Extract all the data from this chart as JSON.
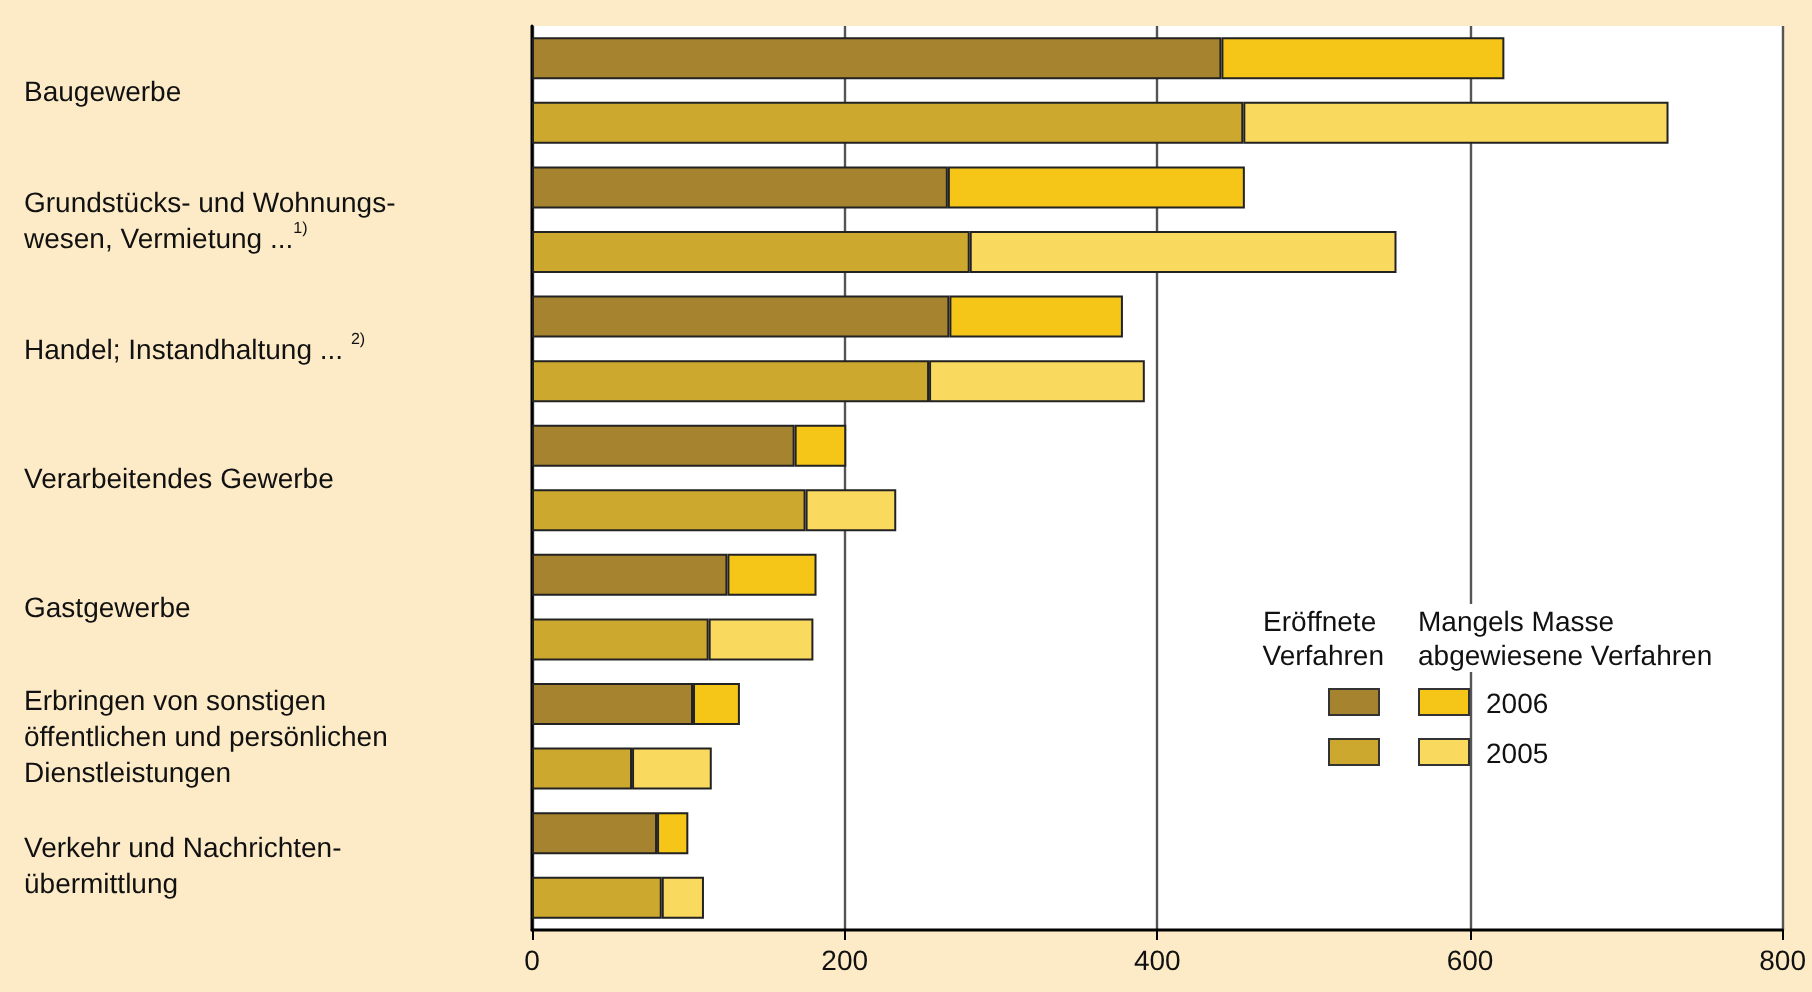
{
  "chart_data": {
    "type": "bar",
    "orientation": "horizontal",
    "stacked": true,
    "categories": [
      "Baugewerbe",
      null,
      "Grundstücks- und Wohnungs-\nwesen, Vermietung ...$^{1)}$",
      null,
      "Handel; Instandhaltung ... $^{2)}$",
      null,
      "Verarbeitendes Gewerbe",
      null,
      "Gastgewerbe",
      null,
      "Erbringen von sonstigen\nöffentlichen und persönlichen\nDienstleistungen",
      null,
      "Verkehr und Nachrichten-\nübermittlung",
      null
    ],
    "series": [
      {
        "colors": [
          "#a6832e",
          "#cda82e",
          "#a6832e",
          "#cda82e",
          "#a6832e",
          "#cda82e",
          "#a6832e",
          "#cda82e",
          "#a6832e",
          "#cda82e",
          "#a6832e",
          "#cda82e",
          "#a6832e",
          "#cda82e"
        ],
        "values": [
          441,
          455,
          266,
          280,
          267,
          254,
          168,
          175,
          125,
          113,
          103,
          64,
          80,
          83
        ]
      },
      {
        "colors": [
          "#f5c518",
          "#fad95f",
          "#f5c518",
          "#fad95f",
          "#f5c518",
          "#fad95f",
          "#f5c518",
          "#fad95f",
          "#f5c518",
          "#fad95f",
          "#f5c518",
          "#fad95f",
          "#f5c518",
          "#fad95f"
        ],
        "values": [
          181,
          272,
          190,
          273,
          111,
          138,
          33,
          58,
          57,
          67,
          30,
          51,
          20,
          27
        ]
      }
    ],
    "xlim": [
      0,
      800
    ],
    "xticks": [
      0,
      200,
      400,
      600,
      800
    ],
    "grid": "x",
    "annotations": [
      "Eröffnete Verfahren",
      "Mangels Masse abgewiesene Verfahren",
      "2006",
      "2005"
    ]
  }
}
